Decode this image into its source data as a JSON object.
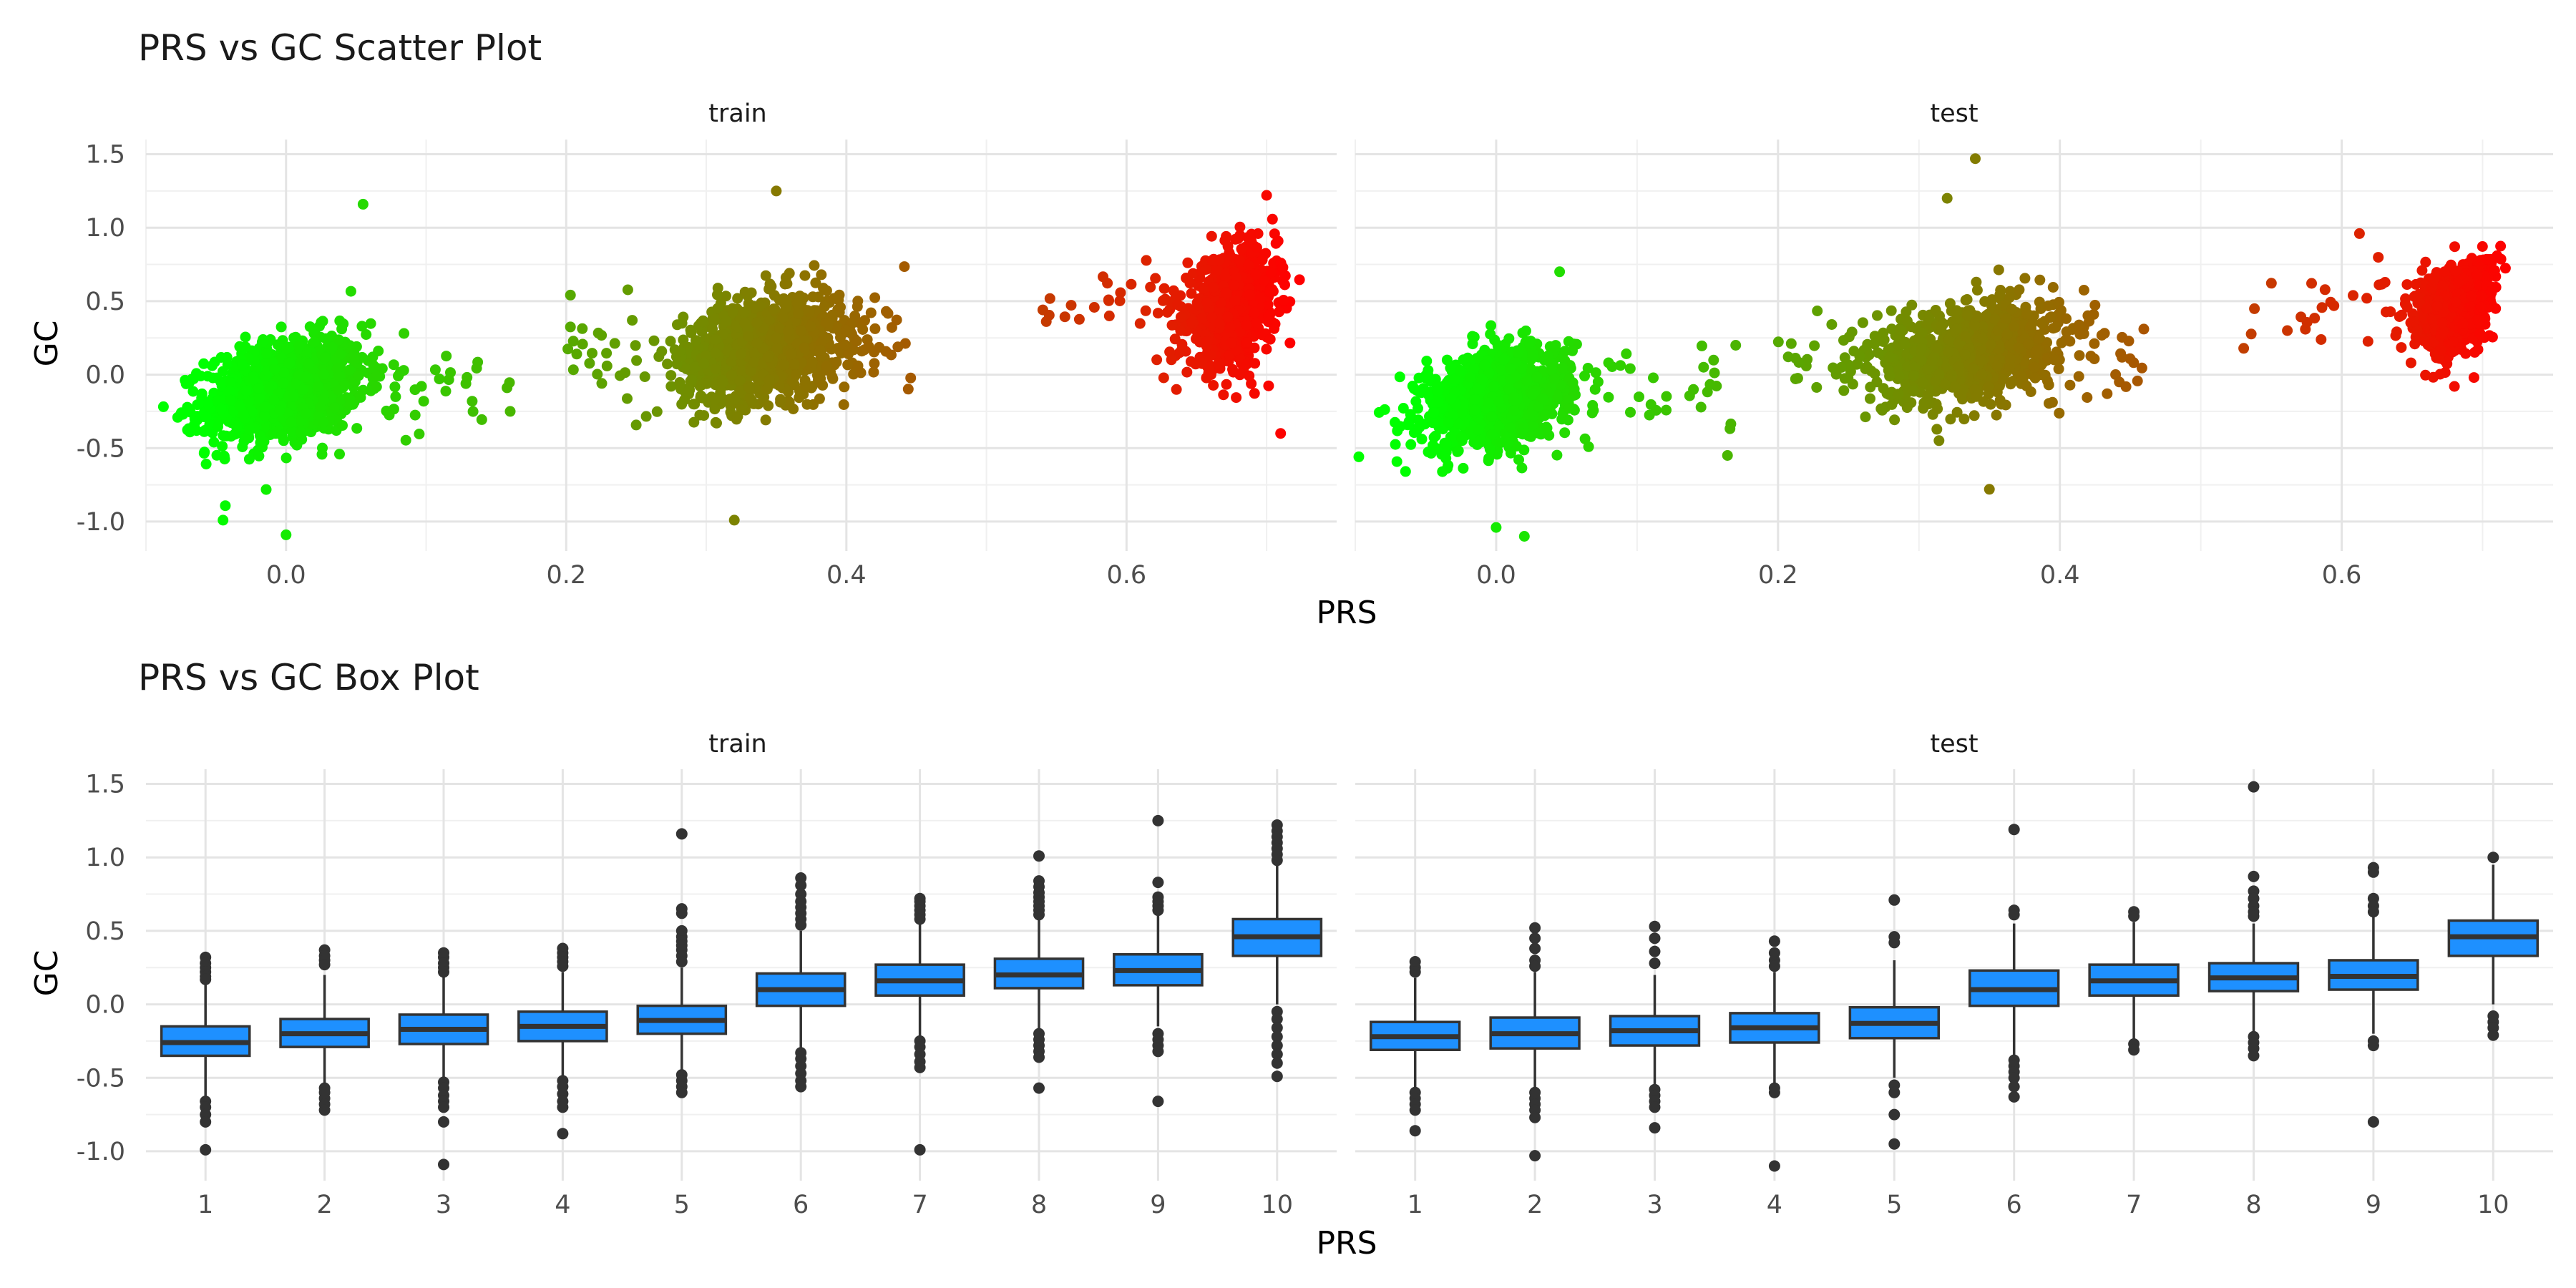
{
  "chart_data": [
    {
      "type": "scatter",
      "title": "PRS vs GC Scatter Plot",
      "xlabel": "PRS",
      "ylabel": "GC",
      "facets": [
        "train",
        "test"
      ],
      "xlim": [
        -0.1,
        0.75
      ],
      "ylim": [
        -1.2,
        1.6
      ],
      "xticks": [
        "0.0",
        "0.2",
        "0.4",
        "0.6"
      ],
      "yticks": [
        "-1.0",
        "-0.5",
        "0.0",
        "0.5",
        "1.0",
        "1.5"
      ],
      "grid": true,
      "color_scale": {
        "low": "#00ff00",
        "high": "#ff0000",
        "by": "PRS"
      },
      "clusters": [
        {
          "facet": "train",
          "x_center": 0.0,
          "x_sd": 0.028,
          "y_center": -0.1,
          "y_sd": 0.17,
          "n": 1200,
          "x_tail_max": 0.16
        },
        {
          "facet": "train",
          "x_center": 0.34,
          "x_sd": 0.028,
          "y_center": 0.18,
          "y_sd": 0.17,
          "n": 1200,
          "x_tail_min": 0.2,
          "x_tail_max": 0.45
        },
        {
          "facet": "train",
          "x_center": 0.675,
          "x_sd": 0.016,
          "y_center": 0.45,
          "y_sd": 0.18,
          "n": 900,
          "x_tail_min": 0.54
        },
        {
          "facet": "test",
          "x_center": 0.0,
          "x_sd": 0.027,
          "y_center": -0.15,
          "y_sd": 0.16,
          "n": 1000,
          "x_tail_max": 0.17
        },
        {
          "facet": "test",
          "x_center": 0.335,
          "x_sd": 0.03,
          "y_center": 0.15,
          "y_sd": 0.16,
          "n": 1000,
          "x_tail_min": 0.2,
          "x_tail_max": 0.46
        },
        {
          "facet": "test",
          "x_center": 0.68,
          "x_sd": 0.014,
          "y_center": 0.45,
          "y_sd": 0.15,
          "n": 700,
          "x_tail_min": 0.53
        }
      ],
      "notable_points": {
        "train": [
          [
            0.055,
            1.16
          ],
          [
            0.35,
            1.25
          ],
          [
            0.32,
            -0.99
          ],
          [
            -0.045,
            -0.99
          ],
          [
            0.0,
            -1.09
          ],
          [
            0.7,
            1.22
          ],
          [
            0.71,
            -0.4
          ],
          [
            0.16,
            -0.25
          ]
        ],
        "test": [
          [
            0.32,
            1.2
          ],
          [
            0.34,
            1.47
          ],
          [
            0.0,
            -1.04
          ],
          [
            0.02,
            -1.1
          ],
          [
            0.35,
            -0.78
          ],
          [
            0.045,
            0.7
          ],
          [
            0.68,
            -0.08
          ],
          [
            0.17,
            0.2
          ]
        ]
      }
    },
    {
      "type": "box",
      "title": "PRS vs GC Box Plot",
      "xlabel": "PRS",
      "ylabel": "GC",
      "facets": [
        "train",
        "test"
      ],
      "categories": [
        "1",
        "2",
        "3",
        "4",
        "5",
        "6",
        "7",
        "8",
        "9",
        "10"
      ],
      "ylim": [
        -1.2,
        1.6
      ],
      "yticks": [
        "-1.0",
        "-0.5",
        "0.0",
        "0.5",
        "1.0",
        "1.5"
      ],
      "grid": true,
      "box_color": "#1e90ff",
      "boxes": {
        "train": [
          {
            "q1": -0.35,
            "median": -0.26,
            "q3": -0.15,
            "lw": -0.64,
            "uw": 0.14,
            "outliers": [
              0.32,
              0.28,
              0.25,
              0.22,
              0.19,
              0.17,
              -0.66,
              -0.7,
              -0.75,
              -0.8,
              -0.99
            ]
          },
          {
            "q1": -0.29,
            "median": -0.2,
            "q3": -0.1,
            "lw": -0.55,
            "uw": 0.2,
            "outliers": [
              0.37,
              0.33,
              0.3,
              0.27,
              -0.57,
              -0.6,
              -0.64,
              -0.68,
              -0.72
            ]
          },
          {
            "q1": -0.27,
            "median": -0.17,
            "q3": -0.07,
            "lw": -0.52,
            "uw": 0.2,
            "outliers": [
              0.35,
              0.32,
              0.28,
              0.25,
              0.22,
              -0.53,
              -0.57,
              -0.62,
              -0.66,
              -0.7,
              -0.8,
              -1.09
            ]
          },
          {
            "q1": -0.25,
            "median": -0.15,
            "q3": -0.05,
            "lw": -0.5,
            "uw": 0.22,
            "outliers": [
              0.38,
              0.35,
              0.32,
              0.29,
              0.26,
              -0.52,
              -0.56,
              -0.61,
              -0.66,
              -0.7,
              -0.88
            ]
          },
          {
            "q1": -0.2,
            "median": -0.11,
            "q3": -0.01,
            "lw": -0.45,
            "uw": 0.25,
            "outliers": [
              0.65,
              0.62,
              0.5,
              0.46,
              0.43,
              0.4,
              0.37,
              0.33,
              0.29,
              -0.48,
              -0.52,
              -0.56,
              -0.6,
              1.16
            ]
          },
          {
            "q1": -0.01,
            "median": 0.1,
            "q3": 0.21,
            "lw": -0.3,
            "uw": 0.5,
            "outliers": [
              0.86,
              0.81,
              0.75,
              0.7,
              0.66,
              0.62,
              0.58,
              0.54,
              -0.33,
              -0.37,
              -0.42,
              -0.47,
              -0.52,
              -0.56
            ]
          },
          {
            "q1": 0.06,
            "median": 0.16,
            "q3": 0.27,
            "lw": -0.22,
            "uw": 0.55,
            "outliers": [
              0.72,
              0.7,
              0.67,
              0.64,
              0.61,
              0.58,
              -0.25,
              -0.29,
              -0.34,
              -0.39,
              -0.43,
              -0.99
            ]
          },
          {
            "q1": 0.11,
            "median": 0.2,
            "q3": 0.31,
            "lw": -0.17,
            "uw": 0.58,
            "outliers": [
              1.01,
              0.84,
              0.8,
              0.76,
              0.73,
              0.7,
              0.67,
              0.64,
              0.61,
              -0.2,
              -0.24,
              -0.28,
              -0.32,
              -0.36,
              -0.57
            ]
          },
          {
            "q1": 0.13,
            "median": 0.23,
            "q3": 0.34,
            "lw": -0.15,
            "uw": 0.62,
            "outliers": [
              1.25,
              0.83,
              0.73,
              0.7,
              0.67,
              0.64,
              -0.2,
              -0.24,
              -0.28,
              -0.32,
              -0.66
            ]
          },
          {
            "q1": 0.33,
            "median": 0.46,
            "q3": 0.58,
            "lw": 0.0,
            "uw": 0.95,
            "outliers": [
              1.22,
              1.18,
              1.14,
              1.1,
              1.06,
              1.02,
              0.98,
              -0.05,
              -0.1,
              -0.16,
              -0.22,
              -0.28,
              -0.34,
              -0.4,
              -0.49
            ]
          }
        ],
        "test": [
          {
            "q1": -0.31,
            "median": -0.22,
            "q3": -0.12,
            "lw": -0.58,
            "uw": 0.18,
            "outliers": [
              0.29,
              0.25,
              0.22,
              -0.6,
              -0.64,
              -0.68,
              -0.72,
              -0.86
            ]
          },
          {
            "q1": -0.3,
            "median": -0.2,
            "q3": -0.09,
            "lw": -0.58,
            "uw": 0.22,
            "outliers": [
              0.52,
              0.45,
              0.38,
              0.3,
              0.26,
              -0.6,
              -0.64,
              -0.68,
              -0.72,
              -0.77,
              -1.03
            ]
          },
          {
            "q1": -0.28,
            "median": -0.18,
            "q3": -0.08,
            "lw": -0.55,
            "uw": 0.2,
            "outliers": [
              0.53,
              0.45,
              0.36,
              0.28,
              -0.58,
              -0.62,
              -0.66,
              -0.7,
              -0.84
            ]
          },
          {
            "q1": -0.26,
            "median": -0.16,
            "q3": -0.06,
            "lw": -0.55,
            "uw": 0.22,
            "outliers": [
              0.43,
              0.35,
              0.3,
              0.26,
              -0.57,
              -0.6,
              -1.1
            ]
          },
          {
            "q1": -0.23,
            "median": -0.13,
            "q3": -0.02,
            "lw": -0.5,
            "uw": 0.3,
            "outliers": [
              0.71,
              0.46,
              0.42,
              -0.55,
              -0.6,
              -0.75,
              -0.95
            ]
          },
          {
            "q1": -0.01,
            "median": 0.1,
            "q3": 0.23,
            "lw": -0.35,
            "uw": 0.55,
            "outliers": [
              1.19,
              0.64,
              0.61,
              -0.38,
              -0.42,
              -0.46,
              -0.5,
              -0.56,
              -0.63
            ]
          },
          {
            "q1": 0.06,
            "median": 0.16,
            "q3": 0.27,
            "lw": -0.25,
            "uw": 0.56,
            "outliers": [
              0.63,
              0.6,
              -0.27,
              -0.31
            ]
          },
          {
            "q1": 0.09,
            "median": 0.18,
            "q3": 0.28,
            "lw": -0.2,
            "uw": 0.55,
            "outliers": [
              1.48,
              0.87,
              0.77,
              0.72,
              0.67,
              0.63,
              0.6,
              -0.22,
              -0.26,
              -0.3,
              -0.35
            ]
          },
          {
            "q1": 0.1,
            "median": 0.19,
            "q3": 0.3,
            "lw": -0.2,
            "uw": 0.6,
            "outliers": [
              0.93,
              0.9,
              0.72,
              0.67,
              0.63,
              -0.25,
              -0.28,
              -0.8
            ]
          },
          {
            "q1": 0.33,
            "median": 0.46,
            "q3": 0.57,
            "lw": 0.0,
            "uw": 0.95,
            "outliers": [
              1.0,
              -0.08,
              -0.12,
              -0.16,
              -0.21
            ]
          }
        ]
      }
    }
  ]
}
